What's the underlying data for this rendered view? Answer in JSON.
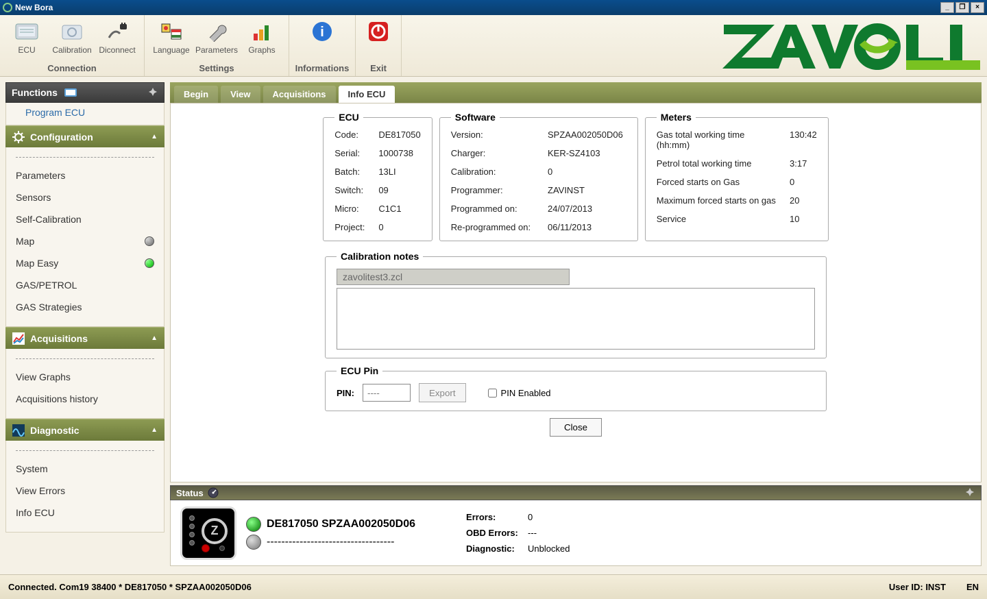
{
  "window": {
    "title": "New Bora"
  },
  "ribbon": {
    "groups": [
      {
        "label": "Connection",
        "buttons": [
          {
            "name": "ecu",
            "label": "ECU"
          },
          {
            "name": "calibration",
            "label": "Calibration"
          },
          {
            "name": "disconnect",
            "label": "Diconnect"
          }
        ]
      },
      {
        "label": "Settings",
        "buttons": [
          {
            "name": "language",
            "label": "Language"
          },
          {
            "name": "parameters",
            "label": "Parameters"
          },
          {
            "name": "graphs",
            "label": "Graphs"
          }
        ]
      },
      {
        "label": "Informations",
        "buttons": [
          {
            "name": "informations",
            "label": ""
          }
        ]
      },
      {
        "label": "Exit",
        "buttons": [
          {
            "name": "exit",
            "label": ""
          }
        ]
      }
    ],
    "brand_colors": {
      "green_dark": "#0f7a2e",
      "green_light": "#79c221"
    }
  },
  "functions_panel": {
    "title": "Functions",
    "top_item": "Program ECU",
    "sections": [
      {
        "title": "Configuration",
        "icon": "gear-icon",
        "items": [
          {
            "label": "Parameters"
          },
          {
            "label": "Sensors"
          },
          {
            "label": "Self-Calibration"
          },
          {
            "label": "Map",
            "dot": "grey"
          },
          {
            "label": "Map Easy",
            "dot": "green"
          },
          {
            "label": "GAS/PETROL"
          },
          {
            "label": "GAS Strategies"
          }
        ]
      },
      {
        "title": "Acquisitions",
        "icon": "chart-icon",
        "items": [
          {
            "label": "View Graphs"
          },
          {
            "label": "Acquisitions history"
          }
        ]
      },
      {
        "title": "Diagnostic",
        "icon": "wave-icon",
        "items": [
          {
            "label": "System"
          },
          {
            "label": "View Errors"
          },
          {
            "label": "Info ECU"
          }
        ]
      }
    ]
  },
  "tabs": {
    "items": [
      "Begin",
      "View",
      "Acquisitions",
      "Info ECU"
    ],
    "active_index": 3
  },
  "info_ecu": {
    "ecu": {
      "legend": "ECU",
      "rows": [
        [
          "Code:",
          "DE817050"
        ],
        [
          "Serial:",
          "1000738"
        ],
        [
          "Batch:",
          "13LI"
        ],
        [
          "Switch:",
          "09"
        ],
        [
          "Micro:",
          "C1C1"
        ],
        [
          "Project:",
          "0"
        ]
      ]
    },
    "software": {
      "legend": "Software",
      "rows": [
        [
          "Version:",
          "SPZAA002050D06"
        ],
        [
          "Charger:",
          "KER-SZ4103"
        ],
        [
          "Calibration:",
          "0"
        ],
        [
          "Programmer:",
          "ZAVINST"
        ],
        [
          "Programmed on:",
          "24/07/2013"
        ],
        [
          "Re-programmed on:",
          "06/11/2013"
        ]
      ]
    },
    "meters": {
      "legend": "Meters",
      "rows": [
        [
          "Gas total working time (hh:mm)",
          "130:42"
        ],
        [
          "Petrol total working time",
          "3:17"
        ],
        [
          "Forced starts on Gas",
          "0"
        ],
        [
          "Maximum forced starts on gas",
          "20"
        ],
        [
          "Service",
          "10"
        ]
      ]
    },
    "calibration_notes": {
      "legend": "Calibration notes",
      "file": "zavolitest3.zcl",
      "notes": ""
    },
    "ecu_pin": {
      "legend": "ECU Pin",
      "pin_label": "PIN:",
      "pin_placeholder": "----",
      "export_label": "Export",
      "enabled_label": "PIN Enabled",
      "enabled": false
    },
    "close_label": "Close"
  },
  "status": {
    "title": "Status",
    "line1": "DE817050 SPZAA002050D06",
    "line2": "-----------------------------------",
    "errors_label": "Errors:",
    "errors_value": "0",
    "obd_label": "OBD Errors:",
    "obd_value": "---",
    "diag_label": "Diagnostic:",
    "diag_value": "Unblocked"
  },
  "bottombar": {
    "left": "Connected. Com19 38400 * DE817050 * SPZAA002050D06",
    "user_label": "User ID: INST",
    "lang": "EN"
  }
}
